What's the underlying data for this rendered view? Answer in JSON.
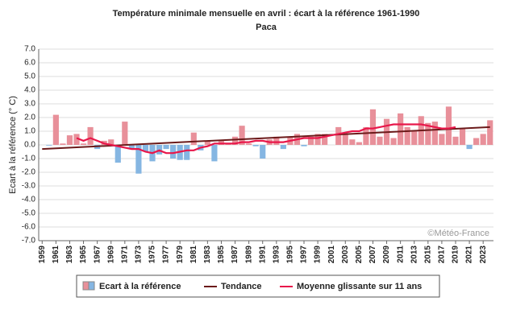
{
  "chart_data": {
    "type": "bar",
    "title": "Température minimale mensuelle en avril : écart à la référence 1961-1990",
    "subtitle": "Paca",
    "y_label": "Ecart à la référence (° C)",
    "watermark": "©Météo-France",
    "x": [
      1959,
      1960,
      1961,
      1962,
      1963,
      1964,
      1965,
      1966,
      1967,
      1968,
      1969,
      1970,
      1971,
      1972,
      1973,
      1974,
      1975,
      1976,
      1977,
      1978,
      1979,
      1980,
      1981,
      1982,
      1983,
      1984,
      1985,
      1986,
      1987,
      1988,
      1989,
      1990,
      1991,
      1992,
      1993,
      1994,
      1995,
      1996,
      1997,
      1998,
      1999,
      2000,
      2001,
      2002,
      2003,
      2004,
      2005,
      2006,
      2007,
      2008,
      2009,
      2010,
      2011,
      2012,
      2013,
      2014,
      2015,
      2016,
      2017,
      2018,
      2019,
      2020,
      2021,
      2022,
      2023,
      2024
    ],
    "xticks": [
      1959,
      1961,
      1963,
      1965,
      1967,
      1969,
      1971,
      1973,
      1975,
      1977,
      1979,
      1981,
      1983,
      1985,
      1987,
      1989,
      1991,
      1993,
      1995,
      1997,
      1999,
      2001,
      2003,
      2005,
      2007,
      2009,
      2011,
      2013,
      2015,
      2017,
      2019,
      2021,
      2023
    ],
    "series": [
      {
        "name": "Ecart à la référence",
        "color_positive": "#e8909a",
        "color_negative": "#85b6e2",
        "values": [
          0.0,
          -0.05,
          2.2,
          0.1,
          0.7,
          0.8,
          0.1,
          1.3,
          -0.3,
          0.3,
          0.4,
          -1.3,
          1.7,
          -0.3,
          -2.1,
          -0.5,
          -1.2,
          -0.7,
          -0.3,
          -1.0,
          -1.1,
          -1.1,
          0.9,
          -0.4,
          0.3,
          -1.2,
          0.3,
          0.1,
          0.6,
          1.4,
          0.1,
          -0.1,
          -1.0,
          0.4,
          0.6,
          -0.3,
          0.6,
          0.8,
          -0.1,
          0.6,
          0.8,
          0.8,
          0.0,
          1.3,
          0.8,
          0.4,
          0.2,
          1.3,
          2.6,
          0.6,
          1.9,
          0.5,
          2.3,
          1.3,
          1.0,
          2.1,
          1.6,
          1.7,
          0.8,
          2.8,
          0.6,
          1.2,
          -0.3,
          0.5,
          0.8,
          1.8
        ]
      },
      {
        "name": "Tendance",
        "color": "#6b1a1a",
        "x": [
          1959,
          2024
        ],
        "values": [
          -0.3,
          1.3
        ]
      },
      {
        "name": "Moyenne glissante sur 11 ans",
        "color": "#e8174a",
        "values": [
          null,
          null,
          null,
          null,
          null,
          0.5,
          0.3,
          0.5,
          0.3,
          0.1,
          0.0,
          -0.1,
          -0.2,
          -0.3,
          -0.3,
          -0.5,
          -0.6,
          -0.4,
          -0.6,
          -0.6,
          -0.5,
          -0.4,
          -0.4,
          -0.2,
          -0.1,
          0.1,
          0.1,
          0.1,
          0.1,
          0.2,
          0.2,
          0.3,
          0.3,
          0.2,
          0.2,
          0.2,
          0.3,
          0.4,
          0.5,
          0.5,
          0.5,
          0.6,
          0.7,
          0.8,
          0.9,
          1.0,
          1.0,
          1.2,
          1.2,
          1.3,
          1.4,
          1.5,
          1.5,
          1.5,
          1.5,
          1.5,
          1.4,
          1.3,
          1.2,
          1.2,
          1.3,
          null,
          null,
          null,
          null,
          null
        ]
      }
    ],
    "ylim": [
      -7,
      7
    ],
    "yticks": [
      {
        "value": 7,
        "label": "7.0"
      },
      {
        "value": 6,
        "label": "6.0"
      },
      {
        "value": 5,
        "label": "5.0"
      },
      {
        "value": 4,
        "label": "4.0"
      },
      {
        "value": 3,
        "label": "3.0"
      },
      {
        "value": 2,
        "label": "2.0"
      },
      {
        "value": 1,
        "label": "1.0"
      },
      {
        "value": 0,
        "label": "0.0"
      },
      {
        "value": -1,
        "label": "-1.0"
      },
      {
        "value": -2,
        "label": "-2.0"
      },
      {
        "value": -3,
        "label": "-3.0"
      },
      {
        "value": -4,
        "label": "-4.0"
      },
      {
        "value": -5,
        "label": "-5.0"
      },
      {
        "value": -6,
        "label": "-6.0"
      },
      {
        "value": -7,
        "label": "-7.0"
      }
    ],
    "grid": true
  }
}
